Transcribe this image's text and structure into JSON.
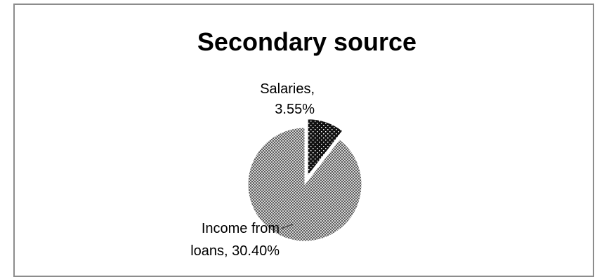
{
  "chart_data": {
    "type": "pie",
    "title": "Secondary source",
    "slices": [
      {
        "name": "Salaries",
        "value": 3.55,
        "label_lines": [
          "Salaries,",
          "3.55%"
        ],
        "pattern": "dotted-dark",
        "exploded": true
      },
      {
        "name": "Income from loans",
        "value": 30.4,
        "label_lines": [
          "Income from",
          "loans, 30.40%"
        ],
        "pattern": "checkered-gray",
        "exploded": false
      }
    ],
    "legend": "none"
  }
}
